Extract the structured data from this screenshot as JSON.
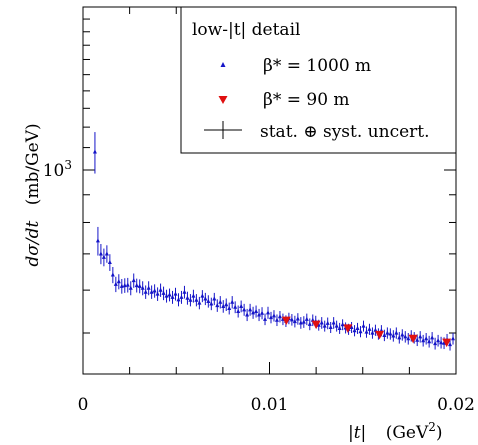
{
  "chart_data": {
    "type": "scatter",
    "xlabel": "|t|",
    "xunit": "GeV",
    "xunit_exp": "2",
    "ylabel": "dσ/dt",
    "yunit": "(mb/GeV)",
    "yscale": "log",
    "xlim": [
      0,
      0.02
    ],
    "ylim": [
      420,
      2000
    ],
    "x_ticks": [
      {
        "v": 0,
        "label": "0"
      },
      {
        "v": 0.01,
        "label": "0.01"
      },
      {
        "v": 0.02,
        "label": "0.02"
      }
    ],
    "y_ticks": [
      {
        "v": 1000,
        "base": "10",
        "exp": "3"
      }
    ],
    "legend": {
      "placement": "top-right",
      "title": "low-|t| detail",
      "entries": [
        {
          "name": "β* = 1000 m",
          "marker": "triangle-up",
          "color": "#1414c8"
        },
        {
          "name": "β* = 90 m",
          "marker": "triangle-down",
          "color": "#e01010"
        },
        {
          "name": "stat. ⊕ syst. uncert.",
          "marker": "errorbar",
          "color": "#000000"
        }
      ]
    },
    "series": [
      {
        "name": "β* = 1000 m",
        "marker": "triangle-up",
        "color": "#1414c8",
        "x": [
          0.00064,
          0.0008,
          0.00096,
          0.00112,
          0.00128,
          0.00144,
          0.0016,
          0.00176,
          0.00192,
          0.00208,
          0.00224,
          0.0024,
          0.00256,
          0.00272,
          0.00288,
          0.00304,
          0.0032,
          0.00336,
          0.00352,
          0.00368,
          0.00384,
          0.004,
          0.00416,
          0.00432,
          0.00448,
          0.00464,
          0.0048,
          0.00496,
          0.00512,
          0.00528,
          0.00544,
          0.0056,
          0.00576,
          0.00592,
          0.00608,
          0.00624,
          0.0064,
          0.00656,
          0.00672,
          0.00688,
          0.00704,
          0.0072,
          0.00736,
          0.00752,
          0.00768,
          0.00784,
          0.008,
          0.00816,
          0.00832,
          0.00848,
          0.00864,
          0.0088,
          0.00896,
          0.00912,
          0.00928,
          0.00944,
          0.0096,
          0.00976,
          0.00992,
          0.01008,
          0.01024,
          0.0104,
          0.01056,
          0.01072,
          0.01088,
          0.01104,
          0.0112,
          0.01136,
          0.01152,
          0.01168,
          0.01184,
          0.012,
          0.01216,
          0.01232,
          0.01248,
          0.01264,
          0.0128,
          0.01296,
          0.01312,
          0.01328,
          0.01344,
          0.0136,
          0.01376,
          0.01392,
          0.01408,
          0.01424,
          0.0144,
          0.01456,
          0.01472,
          0.01488,
          0.01504,
          0.0152,
          0.01536,
          0.01552,
          0.01568,
          0.01584,
          0.016,
          0.01616,
          0.01632,
          0.01648,
          0.01664,
          0.0168,
          0.01696,
          0.01712,
          0.01728,
          0.01744,
          0.0176,
          0.01776,
          0.01792,
          0.01808,
          0.01824,
          0.0184,
          0.01856,
          0.01872,
          0.01888,
          0.01904,
          0.0192,
          0.01936,
          0.01952,
          0.01968,
          0.01984
        ],
        "y": [
          1080,
          740,
          700,
          690,
          700,
          675,
          640,
          615,
          622,
          610,
          612,
          613,
          605,
          625,
          612,
          610,
          605,
          595,
          605,
          595,
          598,
          590,
          600,
          592,
          585,
          588,
          582,
          590,
          576,
          582,
          595,
          580,
          575,
          585,
          575,
          568,
          585,
          578,
          572,
          566,
          578,
          562,
          570,
          560,
          564,
          555,
          570,
          558,
          548,
          560,
          552,
          540,
          552,
          545,
          548,
          540,
          544,
          530,
          545,
          534,
          538,
          528,
          536,
          530,
          526,
          532,
          529,
          525,
          531,
          522,
          524,
          530,
          519,
          528,
          525,
          517,
          522,
          515,
          521,
          512,
          522,
          515,
          510,
          518,
          511,
          508,
          512,
          505,
          510,
          503,
          515,
          502,
          508,
          500,
          506,
          498,
          505,
          495,
          500,
          498,
          494,
          500,
          490,
          496,
          492,
          488,
          494,
          490,
          485,
          492,
          484,
          488,
          482,
          490,
          478,
          484,
          480,
          479,
          486,
          476,
          488
        ],
        "err": [
          95,
          45,
          30,
          26,
          26,
          24,
          22,
          20,
          20,
          19,
          19,
          19,
          18,
          19,
          18,
          18,
          18,
          17,
          18,
          17,
          17,
          17,
          17,
          17,
          16,
          16,
          16,
          16,
          16,
          16,
          16,
          16,
          15,
          16,
          15,
          15,
          15,
          15,
          15,
          15,
          15,
          15,
          15,
          15,
          15,
          14,
          15,
          14,
          14,
          14,
          14,
          14,
          14,
          14,
          14,
          14,
          14,
          13,
          14,
          13,
          13,
          13,
          13,
          13,
          13,
          13,
          13,
          13,
          13,
          13,
          13,
          13,
          13,
          13,
          13,
          12,
          13,
          12,
          13,
          12,
          13,
          12,
          12,
          12,
          12,
          12,
          12,
          12,
          12,
          12,
          12,
          12,
          12,
          12,
          12,
          12,
          12,
          12,
          12,
          12,
          12,
          12,
          12,
          12,
          12,
          12,
          12,
          12,
          12,
          12,
          12,
          12,
          12,
          12,
          12,
          12,
          12,
          12,
          12,
          12,
          12
        ]
      },
      {
        "name": "β* = 90 m",
        "marker": "triangle-down",
        "color": "#e01010",
        "x": [
          0.0109,
          0.0125,
          0.0142,
          0.0159,
          0.0177,
          0.0195
        ],
        "y": [
          527,
          518,
          510,
          496,
          488,
          480
        ],
        "err": [
          6,
          6,
          6,
          6,
          6,
          6
        ]
      }
    ]
  }
}
